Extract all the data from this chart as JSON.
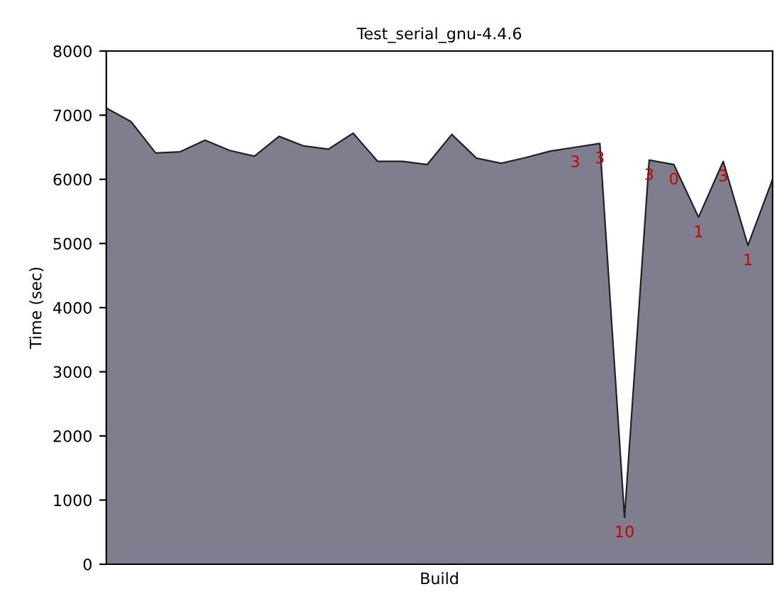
{
  "chart_data": {
    "type": "area",
    "title": "Test_serial_gnu-4.4.6",
    "xlabel": "Build",
    "ylabel": "Time (sec)",
    "categories": [
      null,
      null,
      null,
      null,
      null,
      null,
      null,
      null,
      null,
      null,
      null,
      null,
      null,
      null,
      null,
      null,
      null,
      null,
      null,
      null,
      null,
      null,
      null,
      null,
      null,
      null,
      null,
      null
    ],
    "series": [
      {
        "color": "#7f7e8e",
        "values": [
          7110,
          6900,
          6410,
          6430,
          6610,
          6450,
          6360,
          6670,
          6520,
          6470,
          6720,
          6280,
          6280,
          6230,
          6700,
          6330,
          6250,
          6340,
          6440,
          6500,
          6560,
          730,
          6300,
          6230,
          5410,
          6280,
          4970,
          6000
        ]
      }
    ],
    "annotations": [
      {
        "text": "3",
        "y": 6500
      },
      {
        "text": "3",
        "y": 6560
      },
      {
        "text": "10",
        "y": 730
      },
      {
        "text": "3",
        "y": 6300
      },
      {
        "text": "0",
        "y": 6230
      },
      {
        "text": "1",
        "y": 5410
      },
      {
        "text": "3",
        "y": 6280
      },
      {
        "text": "1",
        "y": 4970
      }
    ],
    "ylim": [
      0,
      8000
    ],
    "yticks": [
      0,
      1000,
      2000,
      3000,
      4000,
      5000,
      6000,
      7000,
      8000
    ],
    "tick_labels": "y",
    "grid": false,
    "legend": false
  }
}
